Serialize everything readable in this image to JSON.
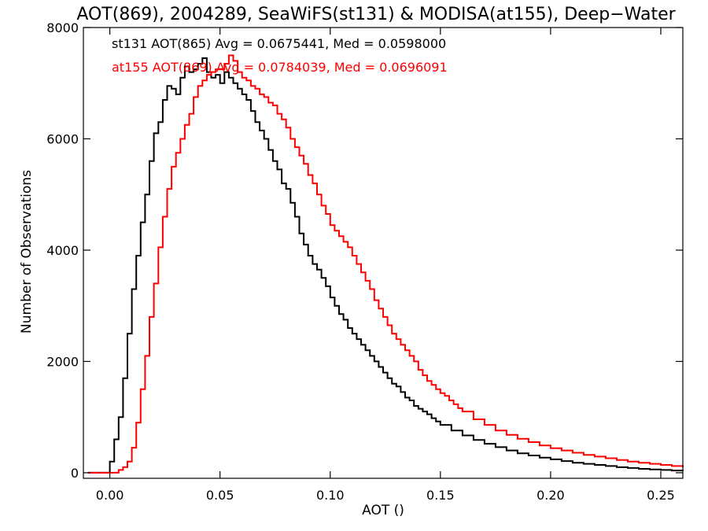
{
  "chart_data": {
    "type": "line",
    "title": "AOT(869), 2004289, SeaWiFS(st131) & MODISA(at155), Deep−Water",
    "xlabel": "AOT ()",
    "ylabel": "Number of Observations",
    "xlim": [
      -0.012,
      0.26
    ],
    "ylim": [
      -100,
      8000
    ],
    "x_ticks": [
      0.0,
      0.05,
      0.1,
      0.15,
      0.2,
      0.25
    ],
    "x_tick_labels": [
      "0.00",
      "0.05",
      "0.10",
      "0.15",
      "0.20",
      "0.25"
    ],
    "y_ticks": [
      0,
      2000,
      4000,
      6000,
      8000
    ],
    "y_tick_labels": [
      "0",
      "2000",
      "4000",
      "6000",
      "8000"
    ],
    "grid": false,
    "step": true,
    "annotations": [
      {
        "text": "st131 AOT(865) Avg = 0.0675441, Med = 0.0598000",
        "color": "#000000"
      },
      {
        "text": "at155 AOT(869) Avg = 0.0784039, Med = 0.0696091",
        "color": "#ff0000"
      }
    ],
    "series": [
      {
        "color": "#000000",
        "x": [
          -0.01,
          -0.001,
          0.0,
          0.002,
          0.004,
          0.006,
          0.008,
          0.01,
          0.012,
          0.014,
          0.016,
          0.018,
          0.02,
          0.022,
          0.024,
          0.026,
          0.028,
          0.03,
          0.032,
          0.034,
          0.036,
          0.038,
          0.04,
          0.042,
          0.044,
          0.046,
          0.048,
          0.05,
          0.052,
          0.054,
          0.056,
          0.058,
          0.06,
          0.062,
          0.064,
          0.066,
          0.068,
          0.07,
          0.072,
          0.074,
          0.076,
          0.078,
          0.08,
          0.082,
          0.084,
          0.086,
          0.088,
          0.09,
          0.092,
          0.094,
          0.096,
          0.098,
          0.1,
          0.102,
          0.104,
          0.106,
          0.108,
          0.11,
          0.112,
          0.114,
          0.116,
          0.118,
          0.12,
          0.122,
          0.124,
          0.126,
          0.128,
          0.13,
          0.132,
          0.134,
          0.136,
          0.138,
          0.14,
          0.142,
          0.144,
          0.146,
          0.148,
          0.15,
          0.155,
          0.16,
          0.165,
          0.17,
          0.175,
          0.18,
          0.185,
          0.19,
          0.195,
          0.2,
          0.205,
          0.21,
          0.215,
          0.22,
          0.225,
          0.23,
          0.235,
          0.24,
          0.245,
          0.25,
          0.255,
          0.26
        ],
        "values": [
          0,
          0,
          200,
          600,
          1000,
          1700,
          2500,
          3300,
          3900,
          4500,
          5000,
          5600,
          6100,
          6300,
          6700,
          6950,
          6900,
          6800,
          7100,
          7300,
          7200,
          7250,
          7350,
          7450,
          7200,
          7100,
          7150,
          7000,
          7200,
          7100,
          7000,
          6900,
          6800,
          6700,
          6500,
          6300,
          6150,
          6000,
          5800,
          5600,
          5450,
          5200,
          5100,
          4850,
          4600,
          4300,
          4100,
          3900,
          3750,
          3650,
          3500,
          3350,
          3150,
          3000,
          2850,
          2750,
          2600,
          2500,
          2400,
          2300,
          2200,
          2100,
          2000,
          1900,
          1800,
          1700,
          1600,
          1550,
          1450,
          1350,
          1300,
          1200,
          1150,
          1100,
          1050,
          980,
          920,
          860,
          760,
          670,
          590,
          520,
          460,
          400,
          350,
          310,
          270,
          240,
          210,
          180,
          160,
          140,
          120,
          100,
          85,
          70,
          60,
          50,
          40,
          35
        ]
      },
      {
        "color": "#ff0000",
        "x": [
          -0.01,
          0.0,
          0.004,
          0.006,
          0.008,
          0.01,
          0.012,
          0.014,
          0.016,
          0.018,
          0.02,
          0.022,
          0.024,
          0.026,
          0.028,
          0.03,
          0.032,
          0.034,
          0.036,
          0.038,
          0.04,
          0.042,
          0.044,
          0.046,
          0.048,
          0.05,
          0.052,
          0.054,
          0.056,
          0.058,
          0.06,
          0.062,
          0.064,
          0.066,
          0.068,
          0.07,
          0.072,
          0.074,
          0.076,
          0.078,
          0.08,
          0.082,
          0.084,
          0.086,
          0.088,
          0.09,
          0.092,
          0.094,
          0.096,
          0.098,
          0.1,
          0.102,
          0.104,
          0.106,
          0.108,
          0.11,
          0.112,
          0.114,
          0.116,
          0.118,
          0.12,
          0.122,
          0.124,
          0.126,
          0.128,
          0.13,
          0.132,
          0.134,
          0.136,
          0.138,
          0.14,
          0.142,
          0.144,
          0.146,
          0.148,
          0.15,
          0.152,
          0.154,
          0.156,
          0.158,
          0.16,
          0.165,
          0.17,
          0.175,
          0.18,
          0.185,
          0.19,
          0.195,
          0.2,
          0.205,
          0.21,
          0.215,
          0.22,
          0.225,
          0.23,
          0.235,
          0.24,
          0.245,
          0.25,
          0.255,
          0.26
        ],
        "values": [
          0,
          0,
          50,
          100,
          200,
          450,
          900,
          1500,
          2100,
          2800,
          3400,
          4050,
          4600,
          5100,
          5500,
          5750,
          6000,
          6250,
          6450,
          6750,
          6950,
          7050,
          7150,
          7200,
          7250,
          7250,
          7350,
          7500,
          7400,
          7200,
          7100,
          7050,
          6950,
          6900,
          6800,
          6750,
          6650,
          6600,
          6450,
          6350,
          6200,
          6000,
          5850,
          5700,
          5550,
          5350,
          5200,
          5000,
          4800,
          4650,
          4450,
          4350,
          4250,
          4150,
          4050,
          3900,
          3750,
          3600,
          3450,
          3300,
          3100,
          2950,
          2800,
          2650,
          2500,
          2400,
          2300,
          2200,
          2100,
          2000,
          1850,
          1750,
          1650,
          1580,
          1500,
          1430,
          1380,
          1300,
          1230,
          1160,
          1100,
          960,
          860,
          760,
          680,
          610,
          550,
          490,
          440,
          400,
          360,
          320,
          290,
          260,
          230,
          200,
          180,
          160,
          140,
          120,
          100
        ]
      }
    ]
  }
}
